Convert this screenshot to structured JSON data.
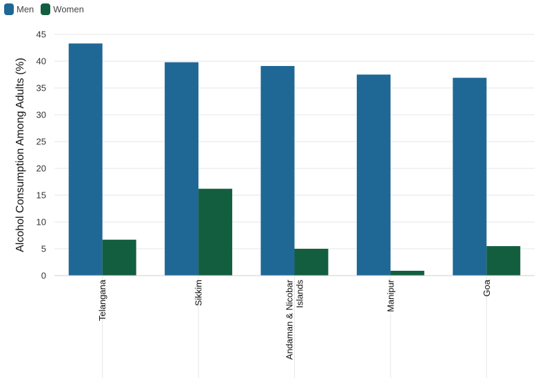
{
  "chart_data": {
    "type": "bar",
    "ylabel": "Alcohol Consumption Among Adults (%)",
    "ylim": [
      0,
      45
    ],
    "yticks": [
      0,
      5,
      10,
      15,
      20,
      25,
      30,
      35,
      40,
      45
    ],
    "categories": [
      [
        "Telangana"
      ],
      [
        "Sikkim"
      ],
      [
        "Andaman & Nicobar",
        "Islands"
      ],
      [
        "Manipur"
      ],
      [
        "Goa"
      ]
    ],
    "series": [
      {
        "name": "Men",
        "color": "#1f6896",
        "values": [
          43.3,
          39.8,
          39.1,
          37.5,
          36.9
        ]
      },
      {
        "name": "Women",
        "color": "#145e40",
        "values": [
          6.7,
          16.2,
          5.0,
          0.9,
          5.5
        ]
      }
    ],
    "grid": true,
    "legend_position": "top-left"
  }
}
